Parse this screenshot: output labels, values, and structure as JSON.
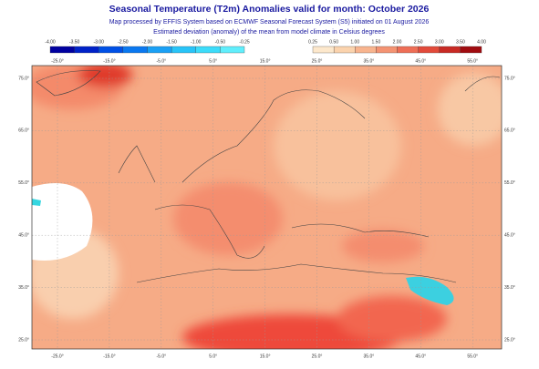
{
  "header": {
    "title": "Seasonal Temperature (T2m) Anomalies valid for month: October 2026",
    "subtitle": "Map processed by EFFIS System based on ECMWF Seasonal Forecast System (S5) initiated on 01 August 2026",
    "description": "Estimated deviation (anomaly) of the mean from model climate in Celsius degrees"
  },
  "legend": {
    "negative_labels": [
      "-4.00",
      "-3.50",
      "-3.00",
      "-2.50",
      "-2.00",
      "-1.50",
      "-1.00",
      "-0.50",
      "-0.25"
    ],
    "positive_labels": [
      "0.25",
      "0.50",
      "1.00",
      "1.50",
      "2.00",
      "2.50",
      "3.00",
      "3.50",
      "4.00"
    ]
  },
  "map": {
    "longitude_labels": [
      "-25.0°",
      "-15.0°",
      "-5.0°",
      "5.0°",
      "15.0°",
      "25.0°",
      "35.0°",
      "45.0°",
      "55.0°"
    ],
    "latitude_labels": [
      "75.0°",
      "65.0°",
      "55.0°",
      "45.0°",
      "35.0°",
      "25.0°"
    ]
  }
}
